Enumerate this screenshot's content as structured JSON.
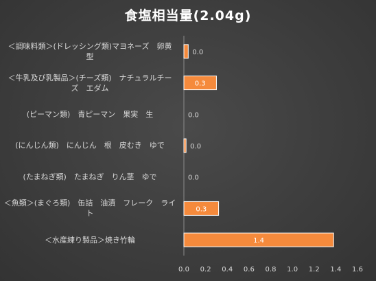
{
  "chart_data": {
    "type": "bar",
    "orientation": "horizontal",
    "title": "食塩相当量(2.04g)",
    "categories": [
      "＜調味料類＞(ドレッシング類)マヨネーズ　卵黄型",
      "＜牛乳及び乳製品＞(チーズ類)　ナチュラルチーズ　エダム",
      "(ピーマン類)　青ピーマン　果実　生",
      "(にんじん類)　にんじん　根　皮むき　ゆで",
      "(たまねぎ類)　たまねぎ　りん茎　ゆで",
      "＜魚類＞(まぐろ類)　缶詰　油漬　フレーク　ライト",
      "＜水産練り製品＞焼き竹輪"
    ],
    "category_lines": [
      [
        "＜調味料類＞(ドレッシング類)マヨネーズ　卵黄",
        "型"
      ],
      [
        "＜牛乳及び乳製品＞(チーズ類)　ナチュラルチー",
        "ズ　エダム"
      ],
      [
        "(ピーマン類)　青ピーマン　果実　生"
      ],
      [
        "(にんじん類)　にんじん　根　皮むき　ゆで"
      ],
      [
        "(たまねぎ類)　たまねぎ　りん茎　ゆで"
      ],
      [
        "＜魚類＞(まぐろ類)　缶詰　油漬　フレーク　ライ",
        "ト"
      ],
      [
        "＜水産練り製品＞焼き竹輪"
      ]
    ],
    "values": [
      0.04,
      0.3,
      0.0,
      0.02,
      0.0,
      0.32,
      1.38
    ],
    "value_labels": [
      "0.0",
      "0.3",
      "0.0",
      "0.0",
      "0.0",
      "0.3",
      "1.4"
    ],
    "xlim": [
      0,
      1.6
    ],
    "xticks": [
      "0.0",
      "0.2",
      "0.4",
      "0.6",
      "0.8",
      "1.0",
      "1.2",
      "1.4",
      "1.6"
    ],
    "xlabel": "",
    "ylabel": "",
    "grid": false,
    "bar_color": "#f58a3c",
    "bar_edge_color": "#ffffff",
    "background_color": "#3f3f3f",
    "text_color": "#d9d9d9"
  }
}
